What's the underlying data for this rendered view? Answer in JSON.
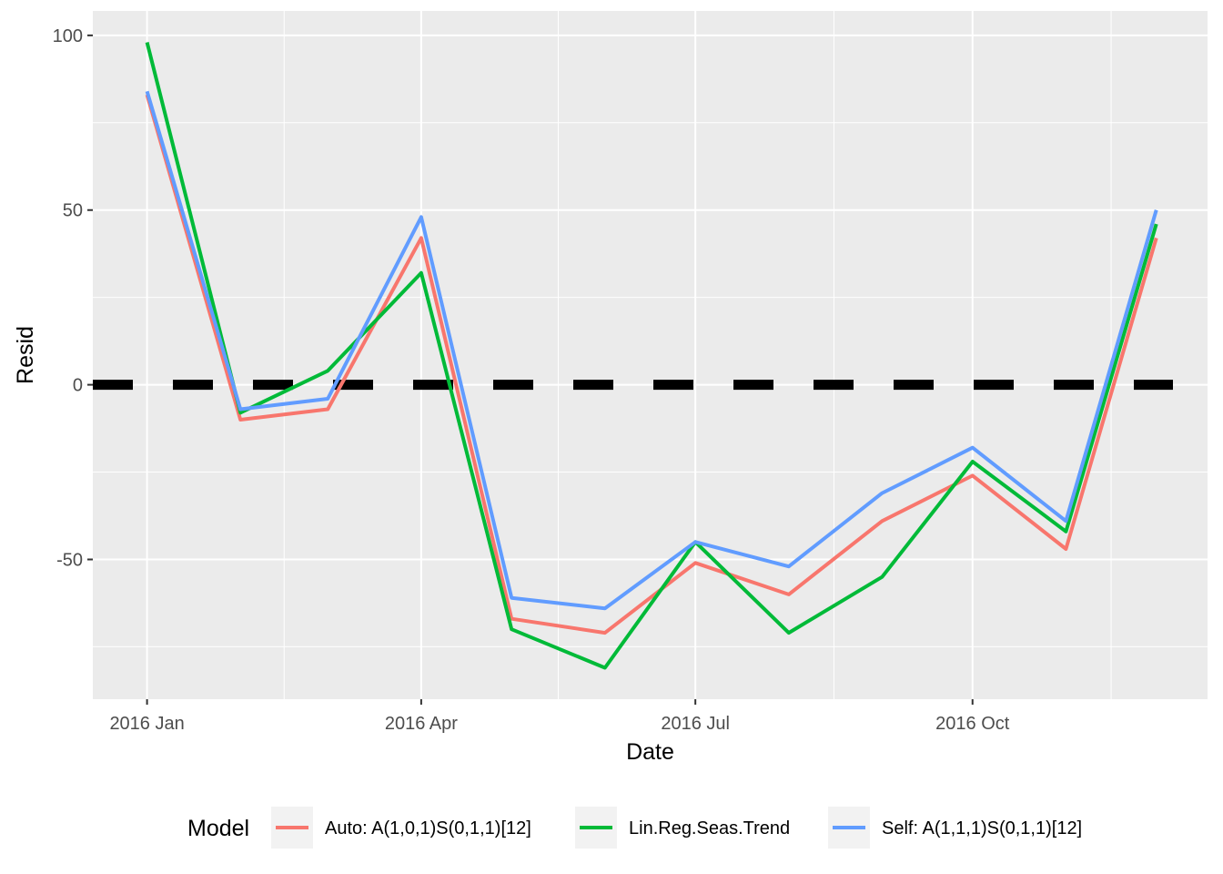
{
  "chart_data": {
    "type": "line",
    "xlabel": "Date",
    "ylabel": "Resid",
    "x": [
      "2016-01",
      "2016-02",
      "2016-03",
      "2016-04",
      "2016-05",
      "2016-06",
      "2016-07",
      "2016-08",
      "2016-09",
      "2016-10",
      "2016-11",
      "2016-12"
    ],
    "x_ticks": [
      "2016 Jan",
      "2016 Apr",
      "2016 Jul",
      "2016 Oct"
    ],
    "y_ticks": [
      100,
      50,
      0,
      -50
    ],
    "ylim": [
      -90,
      107
    ],
    "xlim": [
      "2015-12-14",
      "2016-12-18"
    ],
    "grid": true,
    "reference_line": {
      "y": 0,
      "style": "dashed",
      "color": "#000000"
    },
    "legend": {
      "title": "Model",
      "placement": "bottom"
    },
    "series": [
      {
        "name": "Auto: A(1,0,1)S(0,1,1)[12]",
        "color": "#F8766D",
        "values": [
          83,
          -10,
          -7,
          42,
          -67,
          -71,
          -51,
          -60,
          -39,
          -26,
          -47,
          42
        ]
      },
      {
        "name": "Lin.Reg.Seas.Trend",
        "color": "#00BA38",
        "values": [
          98,
          -8,
          4,
          32,
          -70,
          -81,
          -45,
          -71,
          -55,
          -22,
          -42,
          46
        ]
      },
      {
        "name": "Self: A(1,1,1)S(0,1,1)[12]",
        "color": "#619CFF",
        "values": [
          84,
          -7,
          -4,
          48,
          -61,
          -64,
          -45,
          -52,
          -31,
          -18,
          -39,
          50
        ]
      }
    ]
  }
}
